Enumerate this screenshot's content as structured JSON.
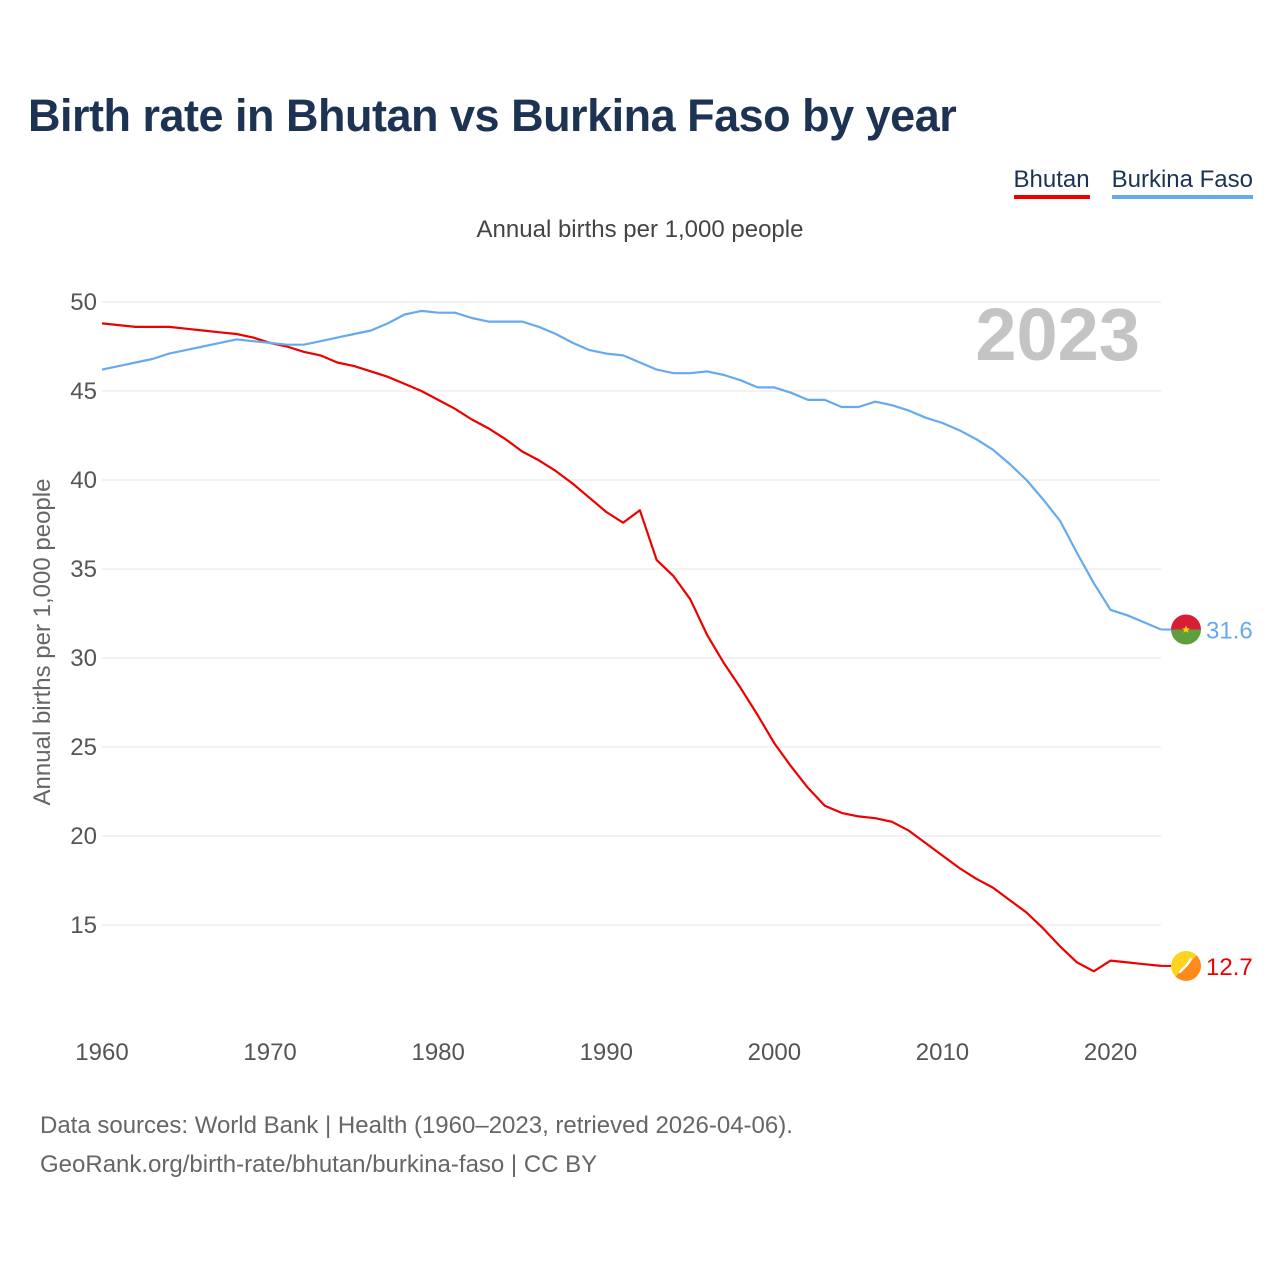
{
  "header": {
    "title": "Birth rate in Bhutan vs Burkina Faso by year"
  },
  "legend": [
    {
      "label": "Bhutan",
      "color": "#ee0000"
    },
    {
      "label": "Burkina Faso",
      "color": "#66aaee"
    }
  ],
  "footer": {
    "source_line1": "Data sources: World Bank | Health (1960–2023, retrieved 2026-04-06).",
    "source_line2": "GeoRank.org/birth-rate/bhutan/burkina-faso | CC BY"
  },
  "chart_data": {
    "type": "line",
    "title": "Birth rate in Bhutan vs Burkina Faso by year",
    "subtitle": "Annual births per 1,000 people",
    "xlabel": "",
    "ylabel": "Annual births per 1,000 people",
    "year_watermark": "2023",
    "xlim": [
      1960,
      2023
    ],
    "ylim": [
      10,
      50
    ],
    "grid": true,
    "x_ticks": [
      1960,
      1970,
      1980,
      1990,
      2000,
      2010,
      2020
    ],
    "y_ticks": [
      15,
      20,
      25,
      30,
      35,
      40,
      45,
      50
    ],
    "x": [
      1960,
      1961,
      1962,
      1963,
      1964,
      1965,
      1966,
      1967,
      1968,
      1969,
      1970,
      1971,
      1972,
      1973,
      1974,
      1975,
      1976,
      1977,
      1978,
      1979,
      1980,
      1981,
      1982,
      1983,
      1984,
      1985,
      1986,
      1987,
      1988,
      1989,
      1990,
      1991,
      1992,
      1993,
      1994,
      1995,
      1996,
      1997,
      1998,
      1999,
      2000,
      2001,
      2002,
      2003,
      2004,
      2005,
      2006,
      2007,
      2008,
      2009,
      2010,
      2011,
      2012,
      2013,
      2014,
      2015,
      2016,
      2017,
      2018,
      2019,
      2020,
      2021,
      2022,
      2023
    ],
    "series": [
      {
        "name": "Bhutan",
        "color": "#ee0000",
        "end_label": "12.7",
        "flag": "bhutan-flag",
        "values": [
          48.8,
          48.7,
          48.6,
          48.6,
          48.6,
          48.5,
          48.4,
          48.3,
          48.2,
          48.0,
          47.7,
          47.5,
          47.2,
          47.0,
          46.6,
          46.4,
          46.1,
          45.8,
          45.4,
          45.0,
          44.5,
          44.0,
          43.4,
          42.9,
          42.3,
          41.6,
          41.1,
          40.5,
          39.8,
          39.0,
          38.2,
          37.6,
          38.3,
          35.5,
          34.6,
          33.3,
          31.3,
          29.7,
          28.3,
          26.8,
          25.2,
          23.9,
          22.7,
          21.7,
          21.3,
          21.1,
          21.0,
          20.8,
          20.3,
          19.6,
          18.9,
          18.2,
          17.6,
          17.1,
          16.4,
          15.7,
          14.8,
          13.8,
          12.9,
          12.4,
          13.0,
          12.9,
          12.8,
          12.7
        ]
      },
      {
        "name": "Burkina Faso",
        "color": "#66aaee",
        "end_label": "31.6",
        "flag": "burkina-faso-flag",
        "values": [
          46.2,
          46.4,
          46.6,
          46.8,
          47.1,
          47.3,
          47.5,
          47.7,
          47.9,
          47.8,
          47.7,
          47.6,
          47.6,
          47.8,
          48.0,
          48.2,
          48.4,
          48.8,
          49.3,
          49.5,
          49.4,
          49.4,
          49.1,
          48.9,
          48.9,
          48.9,
          48.6,
          48.2,
          47.7,
          47.3,
          47.1,
          47.0,
          46.6,
          46.2,
          46.0,
          46.0,
          46.1,
          45.9,
          45.6,
          45.2,
          45.2,
          44.9,
          44.5,
          44.5,
          44.1,
          44.1,
          44.4,
          44.2,
          43.9,
          43.5,
          43.2,
          42.8,
          42.3,
          41.7,
          40.9,
          40.0,
          38.9,
          37.7,
          35.9,
          34.2,
          32.7,
          32.4,
          32.0,
          31.6
        ]
      }
    ]
  }
}
